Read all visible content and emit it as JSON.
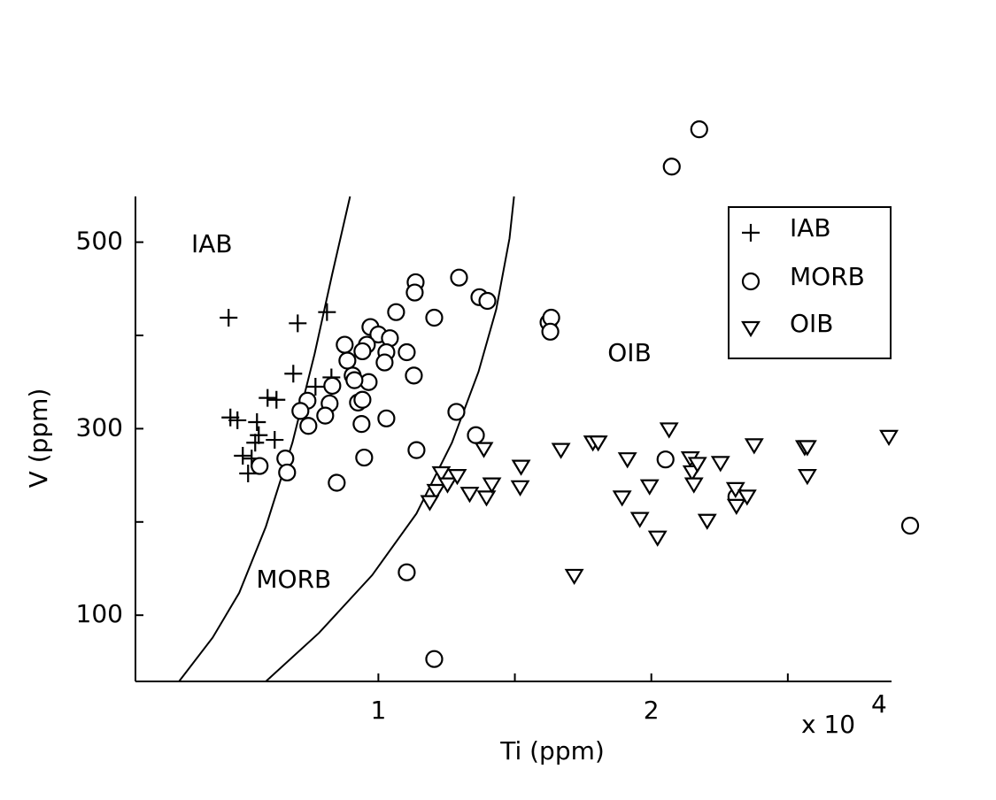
{
  "chart_data": {
    "type": "scatter",
    "xlabel": "Ti (ppm)",
    "ylabel": "V (ppm)",
    "x_multiplier": {
      "base": "x 10",
      "exponent": "4"
    },
    "xlim": [
      1100,
      28800
    ],
    "ylim": [
      29,
      549
    ],
    "xticks": [
      {
        "value": 10000,
        "label": "1"
      },
      {
        "value": 20000,
        "label": "2"
      }
    ],
    "xminorticks": [
      15000,
      25000
    ],
    "yticks": [
      100,
      300,
      500
    ],
    "yminorticks": [
      200,
      400
    ],
    "grid": false,
    "legend": "upper right",
    "annotations": [
      {
        "text": "IAB",
        "x": 3900,
        "y": 497
      },
      {
        "text": "MORB",
        "x": 6900,
        "y": 137
      },
      {
        "text": "OIB",
        "x": 19200,
        "y": 380
      }
    ],
    "boundary_lines": [
      {
        "color": "#000000",
        "x": [
          2695,
          3929,
          4903,
          5877,
          6851,
          7662,
          8312,
          8961
        ],
        "values": [
          29,
          76,
          124,
          195,
          285,
          380,
          466,
          549
        ]
      },
      {
        "color": "#000000",
        "x": [
          5877,
          7825,
          9773,
          11396,
          12695,
          13669,
          14318,
          14805,
          14968
        ],
        "values": [
          29,
          81,
          143,
          209,
          285,
          361,
          428,
          504,
          549
        ]
      }
    ],
    "series": [
      {
        "name": "IAB",
        "marker": "plus",
        "color": "#000000",
        "x": [
          4513,
          7045,
          8117,
          6883,
          7695,
          8279,
          5941,
          6266,
          4578,
          4837,
          5552,
          5617,
          5487,
          6201,
          5032,
          5357,
          5227
        ],
        "values": [
          419,
          413,
          425,
          359,
          345,
          355,
          333,
          331,
          312,
          309,
          307,
          293,
          285,
          288,
          271,
          268,
          252
        ]
      },
      {
        "name": "MORB",
        "marker": "circle",
        "color": "#000000",
        "x": [
          21754,
          20748,
          11364,
          11331,
          12955,
          13702,
          13994,
          10649,
          12046,
          16234,
          16332,
          16299,
          9708,
          10000,
          10422,
          8766,
          9578,
          10292,
          11039,
          9416,
          8864,
          10227,
          11299,
          9058,
          9643,
          9123,
          8312,
          9253,
          9416,
          8214,
          7402,
          7143,
          8052,
          7435,
          10292,
          9383,
          12857,
          13572,
          11396,
          9480,
          6591,
          5649,
          6656,
          8474,
          20520,
          23118,
          29482,
          11039,
          12046
        ],
        "values": [
          621,
          581,
          457,
          446,
          462,
          441,
          437,
          425,
          419,
          414,
          419,
          404,
          409,
          401,
          397,
          390,
          390,
          382,
          382,
          383,
          373,
          371,
          357,
          357,
          350,
          352,
          346,
          328,
          331,
          327,
          330,
          319,
          314,
          303,
          311,
          305,
          318,
          293,
          277,
          269,
          268,
          260,
          253,
          242,
          267,
          227,
          196,
          146,
          53
        ]
      },
      {
        "name": "OIB",
        "marker": "triangle-down",
        "color": "#000000",
        "x": [
          12305,
          12111,
          11883,
          12533,
          12890,
          13344,
          13864,
          13961,
          14156,
          15228,
          15195,
          16689,
          17858,
          18053,
          19124,
          18929,
          19579,
          19936,
          20228,
          20650,
          21429,
          21494,
          21689,
          21559,
          22046,
          22533,
          23085,
          23118,
          23508,
          23767,
          25618,
          25715,
          25715,
          28703,
          17176
        ],
        "values": [
          252,
          233,
          221,
          240,
          249,
          230,
          278,
          226,
          240,
          259,
          237,
          277,
          285,
          285,
          267,
          226,
          203,
          238,
          183,
          299,
          268,
          253,
          262,
          240,
          201,
          263,
          235,
          217,
          227,
          282,
          280,
          280,
          249,
          291,
          142
        ]
      }
    ]
  }
}
